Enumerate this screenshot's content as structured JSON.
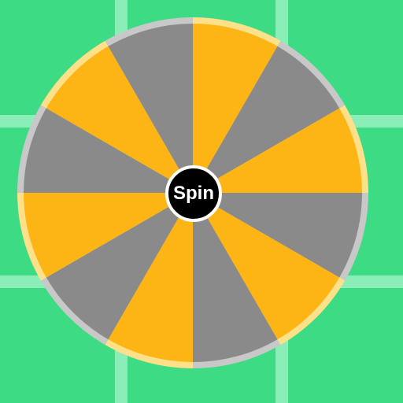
{
  "background": {
    "color": "#3ddc84",
    "grid_line_color": "#8beeb9"
  },
  "wheel": {
    "segment_count": 12,
    "segments": [
      {
        "color": "#fdb515"
      },
      {
        "color": "#8a8a8a"
      },
      {
        "color": "#fdb515"
      },
      {
        "color": "#8a8a8a"
      },
      {
        "color": "#fdb515"
      },
      {
        "color": "#8a8a8a"
      },
      {
        "color": "#fdb515"
      },
      {
        "color": "#8a8a8a"
      },
      {
        "color": "#fdb515"
      },
      {
        "color": "#8a8a8a"
      },
      {
        "color": "#fdb515"
      },
      {
        "color": "#8a8a8a"
      }
    ],
    "rim_colors": {
      "yellow": "#fde08a",
      "gray": "#c8c8c8"
    }
  },
  "spin_button": {
    "label": "Spin",
    "color": "#000000",
    "border_color": "#ffffff",
    "text_color": "#ffffff"
  }
}
